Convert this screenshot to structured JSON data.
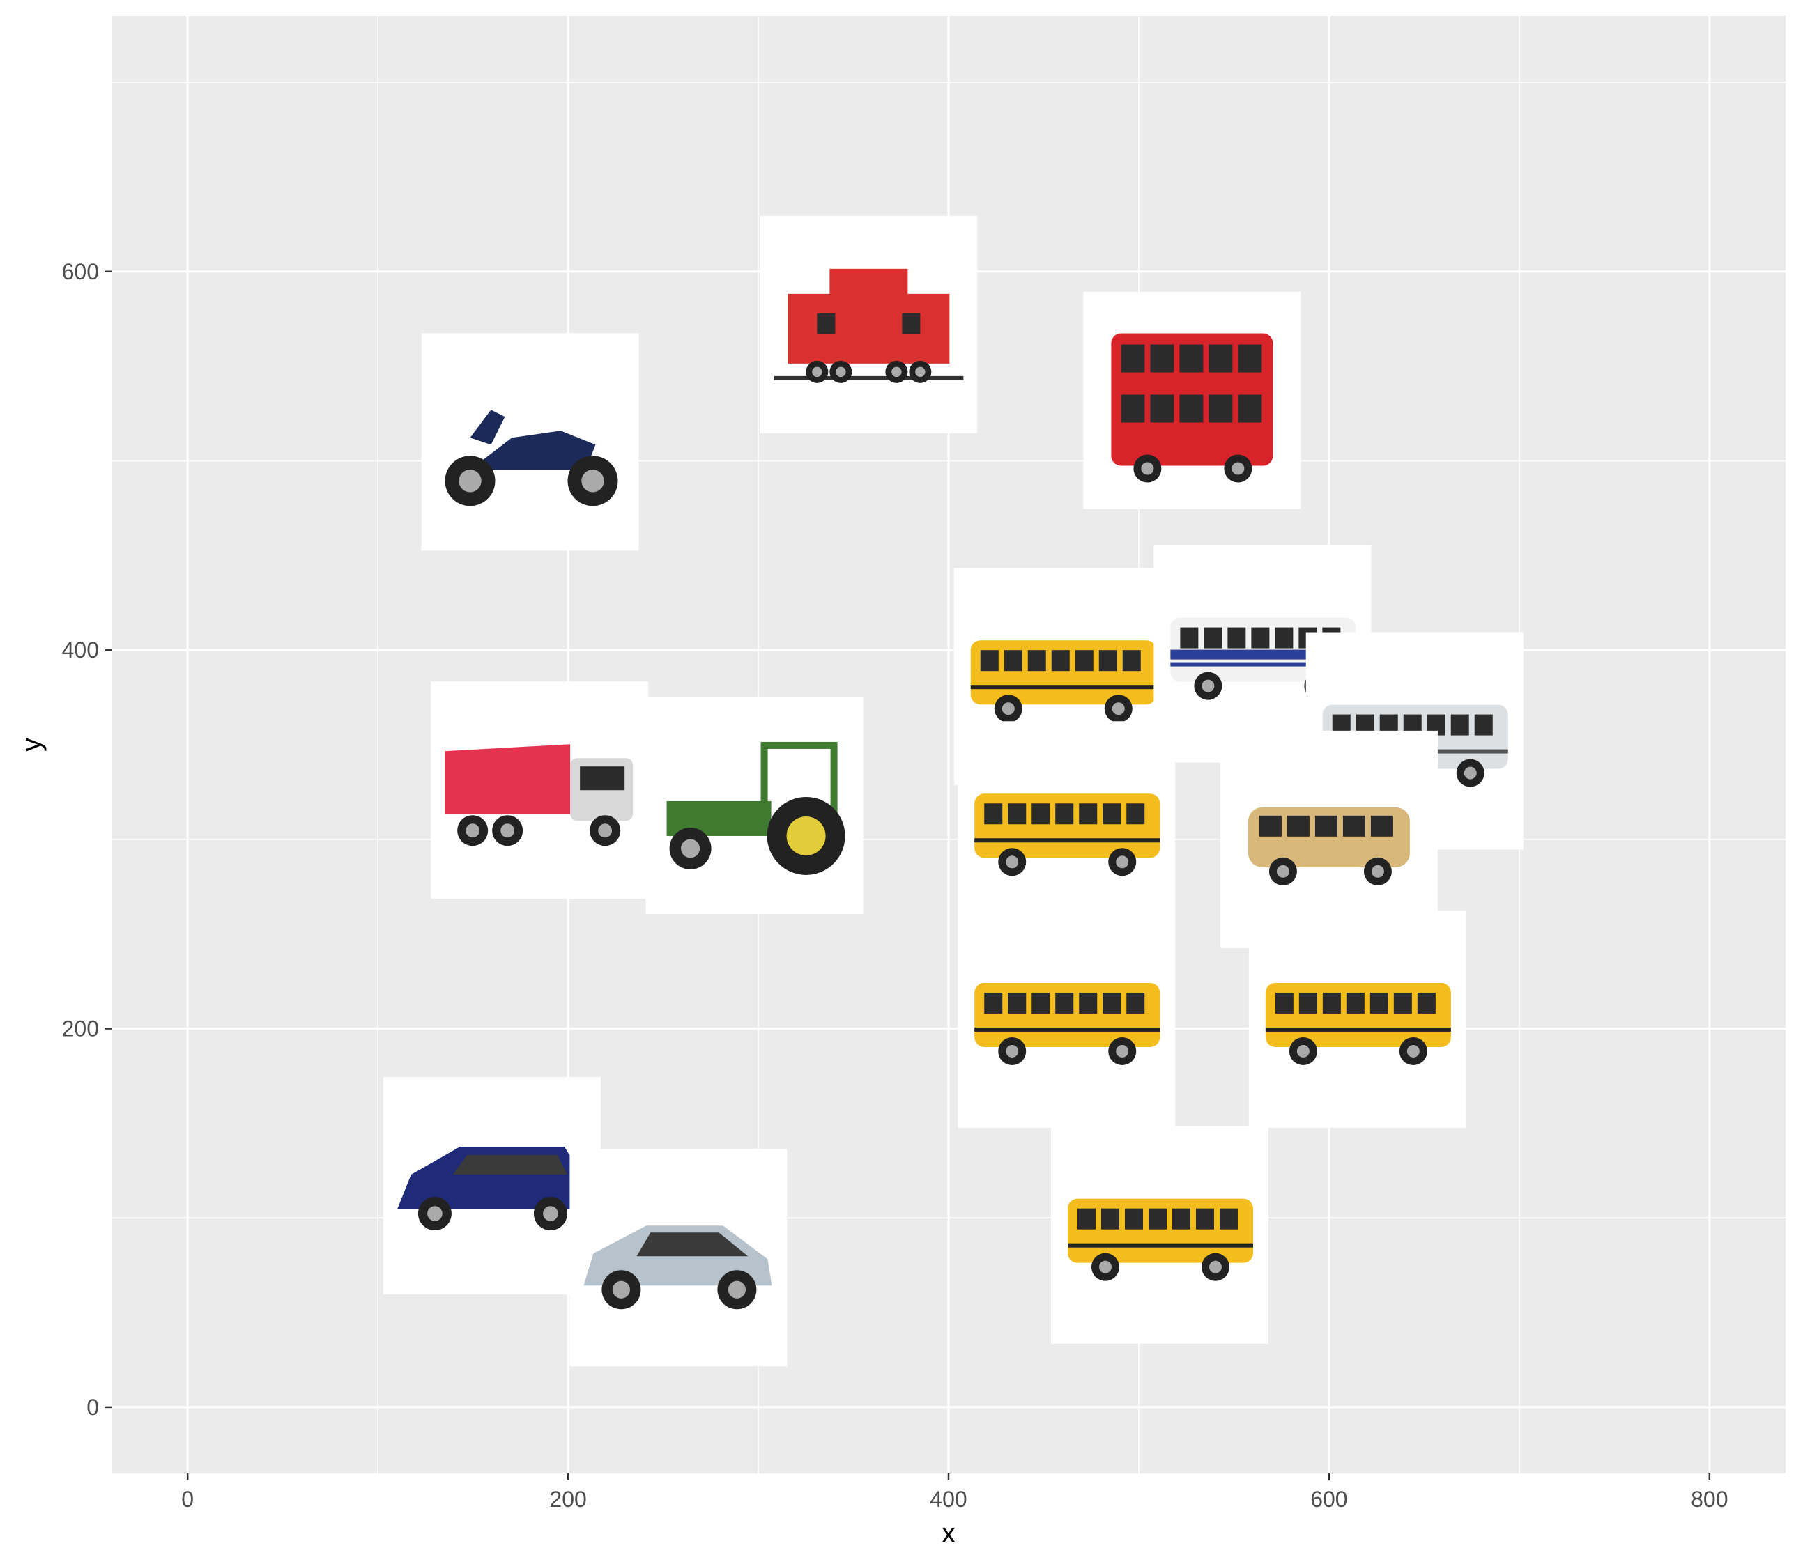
{
  "chart_data": {
    "type": "scatter",
    "marker": "vehicle-image-thumbnail",
    "xlabel": "x",
    "ylabel": "y",
    "xlim": [
      -40,
      840
    ],
    "ylim": [
      -35,
      735
    ],
    "x_ticks": [
      0,
      200,
      400,
      600,
      800
    ],
    "y_ticks": [
      0,
      200,
      400,
      600
    ],
    "x_minor": [
      100,
      300,
      500,
      700
    ],
    "y_minor": [
      100,
      300,
      500,
      700
    ],
    "grid": true,
    "panel_background": "#ebebeb",
    "grid_color": "#ffffff",
    "points": [
      {
        "x": 180,
        "y": 510,
        "icon": "motorcycle-icon",
        "color": "#1c2a5a"
      },
      {
        "x": 358,
        "y": 572,
        "icon": "caboose-icon",
        "color": "#d93030"
      },
      {
        "x": 528,
        "y": 532,
        "icon": "double-decker-bus-icon",
        "color": "#d8232a"
      },
      {
        "x": 460,
        "y": 386,
        "icon": "school-bus-icon",
        "color": "#f2bd1d"
      },
      {
        "x": 565,
        "y": 398,
        "icon": "city-bus-icon",
        "color": "#2a3f9a"
      },
      {
        "x": 645,
        "y": 352,
        "icon": "coach-bus-icon",
        "color": "#dde0e3"
      },
      {
        "x": 185,
        "y": 326,
        "icon": "dump-truck-icon",
        "color": "#e3334f"
      },
      {
        "x": 298,
        "y": 318,
        "icon": "tractor-icon",
        "color": "#3f7a30"
      },
      {
        "x": 462,
        "y": 305,
        "icon": "school-bus-icon",
        "color": "#f2bd1d"
      },
      {
        "x": 600,
        "y": 300,
        "icon": "minibus-icon",
        "color": "#d8b87a"
      },
      {
        "x": 462,
        "y": 205,
        "icon": "school-bus-icon",
        "color": "#f2bd1d"
      },
      {
        "x": 615,
        "y": 205,
        "icon": "school-bus-icon",
        "color": "#f2bd1d"
      },
      {
        "x": 160,
        "y": 117,
        "icon": "minivan-icon",
        "color": "#1f2a78"
      },
      {
        "x": 258,
        "y": 79,
        "icon": "hatchback-car-icon",
        "color": "#b7c3cc"
      },
      {
        "x": 511,
        "y": 91,
        "icon": "school-bus-icon",
        "color": "#f2bd1d"
      }
    ]
  }
}
